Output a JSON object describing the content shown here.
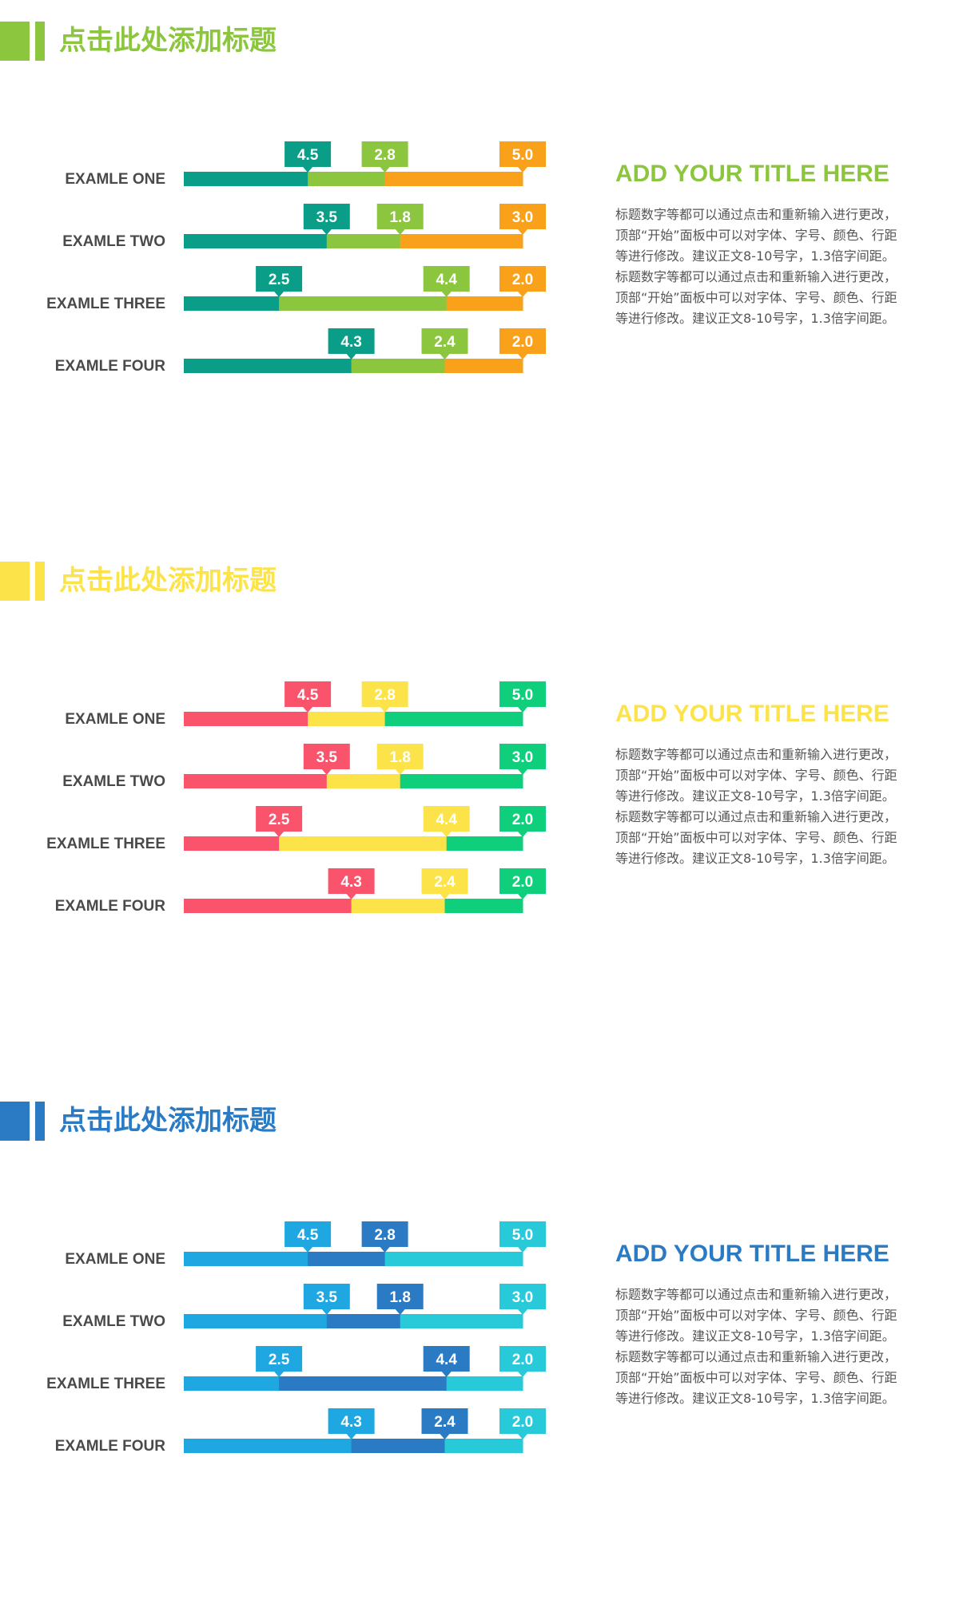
{
  "sections": [
    {
      "header_title": "点击此处添加标题",
      "side_title": "ADD YOUR TITLE HERE",
      "side_text": "标题数字等都可以通过点击和重新输入进行更改，顶部“开始”面板中可以对字体、字号、颜色、行距等进行修改。建议正文8-10号字，1.3倍字间距。标题数字等都可以通过点击和重新输入进行更改，顶部“开始”面板中可以对字体、字号、颜色、行距等进行修改。建议正文8-10号字，1.3倍字间距。",
      "colors": {
        "accent": "#8cc63f",
        "bar1": "#0a9e88",
        "bar2": "#8cc63f",
        "bar3": "#f9a11b"
      },
      "chart_data": {
        "type": "bar",
        "stacked": true,
        "orientation": "horizontal",
        "categories": [
          "EXAMLE ONE",
          "EXAMLE TWO",
          "EXAMLE THREE",
          "EXAMLE FOUR"
        ],
        "series": [
          {
            "values": [
              4.5,
              3.5,
              2.5,
              4.3
            ]
          },
          {
            "values": [
              2.8,
              1.8,
              4.4,
              2.4
            ]
          },
          {
            "values": [
              5.0,
              3.0,
              2.0,
              2.0
            ]
          }
        ],
        "xlabel": "",
        "ylabel": ""
      }
    },
    {
      "header_title": "点击此处添加标题",
      "side_title": "ADD YOUR TITLE HERE",
      "side_text": "标题数字等都可以通过点击和重新输入进行更改，顶部“开始”面板中可以对字体、字号、颜色、行距等进行修改。建议正文8-10号字，1.3倍字间距。标题数字等都可以通过点击和重新输入进行更改，顶部“开始”面板中可以对字体、字号、颜色、行距等进行修改。建议正文8-10号字，1.3倍字间距。",
      "colors": {
        "accent": "#fde34a",
        "bar1": "#f9546b",
        "bar2": "#fde34a",
        "bar3": "#0fcf7c"
      },
      "chart_data": {
        "type": "bar",
        "stacked": true,
        "orientation": "horizontal",
        "categories": [
          "EXAMLE ONE",
          "EXAMLE TWO",
          "EXAMLE THREE",
          "EXAMLE FOUR"
        ],
        "series": [
          {
            "values": [
              4.5,
              3.5,
              2.5,
              4.3
            ]
          },
          {
            "values": [
              2.8,
              1.8,
              4.4,
              2.4
            ]
          },
          {
            "values": [
              5.0,
              3.0,
              2.0,
              2.0
            ]
          }
        ],
        "xlabel": "",
        "ylabel": ""
      }
    },
    {
      "header_title": "点击此处添加标题",
      "side_title": "ADD YOUR TITLE HERE",
      "side_text": "标题数字等都可以通过点击和重新输入进行更改，顶部“开始”面板中可以对字体、字号、颜色、行距等进行修改。建议正文8-10号字，1.3倍字间距。标题数字等都可以通过点击和重新输入进行更改，顶部“开始”面板中可以对字体、字号、颜色、行距等进行修改。建议正文8-10号字，1.3倍字间距。",
      "colors": {
        "accent": "#2a7bc4",
        "bar1": "#1ea7e1",
        "bar2": "#2a7bc4",
        "bar3": "#28c9d9"
      },
      "chart_data": {
        "type": "bar",
        "stacked": true,
        "orientation": "horizontal",
        "categories": [
          "EXAMLE ONE",
          "EXAMLE TWO",
          "EXAMLE THREE",
          "EXAMLE FOUR"
        ],
        "series": [
          {
            "values": [
              4.5,
              3.5,
              2.5,
              4.3
            ]
          },
          {
            "values": [
              2.8,
              1.8,
              4.4,
              2.4
            ]
          },
          {
            "values": [
              5.0,
              3.0,
              2.0,
              2.0
            ]
          }
        ],
        "xlabel": "",
        "ylabel": ""
      }
    }
  ]
}
